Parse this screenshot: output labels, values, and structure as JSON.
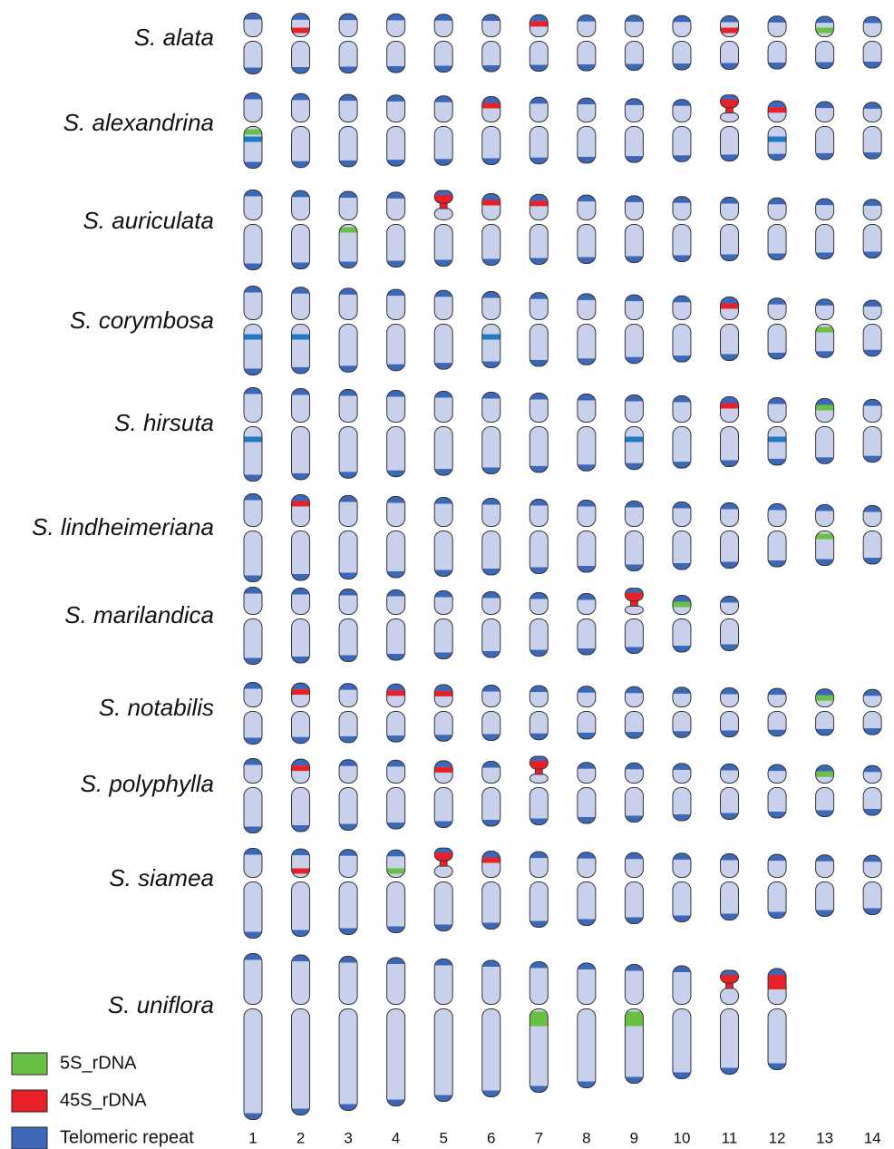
{
  "species": [
    "S. alata",
    "S. alexandrina",
    "S. auriculata",
    "S. corymbosa",
    "S. hirsuta",
    "S. lindheimeriana",
    "S. marilandica",
    "S. notabilis",
    "S. polyphylla",
    "S. siamea",
    "S. uniflora"
  ],
  "chromosome_numbers": [
    1,
    2,
    3,
    4,
    5,
    6,
    7,
    8,
    9,
    10,
    11,
    12,
    13,
    14
  ],
  "legend": [
    {
      "label": "5S_rDNA",
      "color": "#6abf45"
    },
    {
      "label": "45S_rDNA",
      "color": "#e8202a"
    },
    {
      "label": "Telomeric repeat",
      "color": "#3d68b8"
    }
  ]
}
